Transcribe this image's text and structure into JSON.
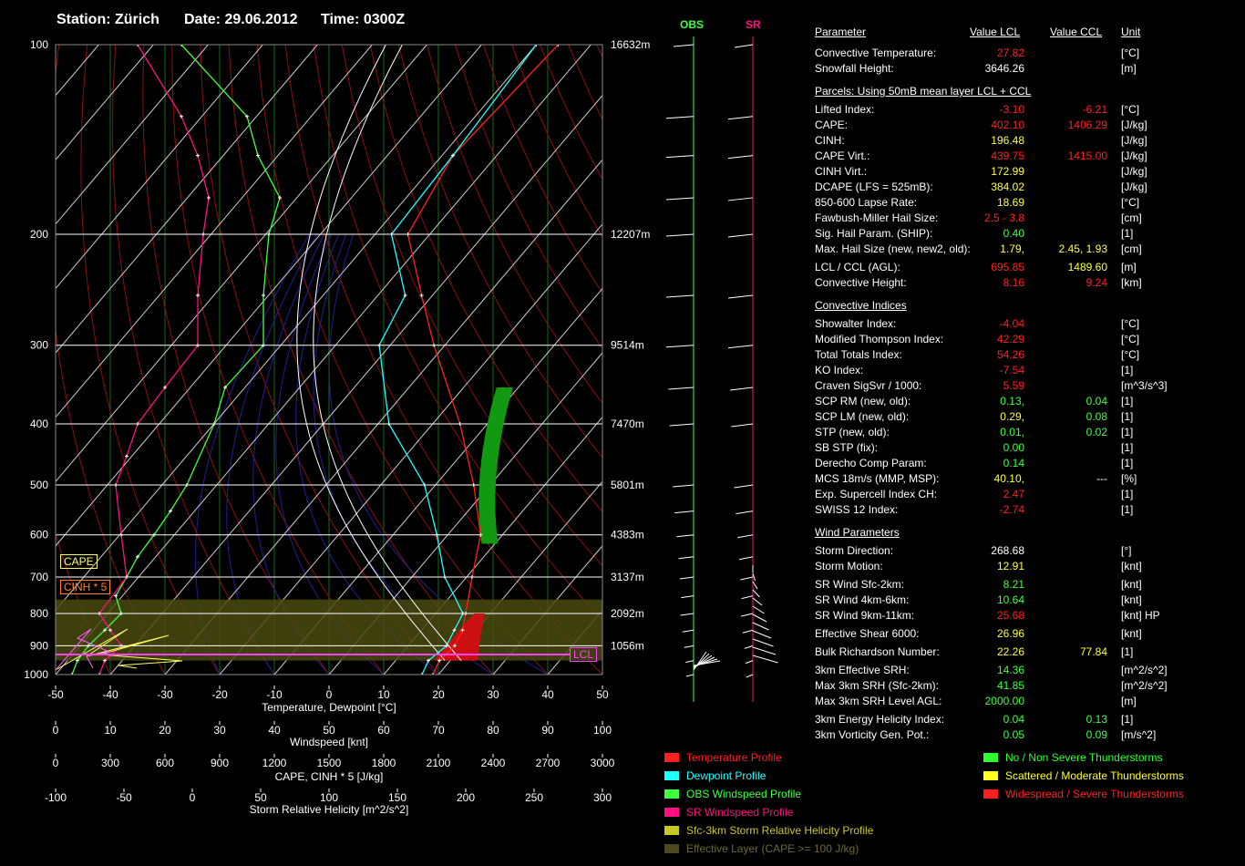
{
  "header": {
    "station": "Station: Zürich",
    "date": "Date: 29.06.2012",
    "time": "Time: 0300Z"
  },
  "hodo_labels": {
    "obs": "OBS",
    "sr": "SR"
  },
  "axes": {
    "temp_label": "Temperature, Dewpoint [°C]",
    "temp_ticks": [
      "-50",
      "-40",
      "-30",
      "-20",
      "-10",
      "0",
      "10",
      "20",
      "30",
      "40",
      "50"
    ],
    "wind_label": "Windspeed [knt]",
    "wind_ticks": [
      "0",
      "10",
      "20",
      "30",
      "40",
      "50",
      "60",
      "70",
      "80",
      "90",
      "100"
    ],
    "cape_label": "CAPE, CINH * 5 [J/kg]",
    "cape_ticks": [
      "0",
      "300",
      "600",
      "900",
      "1200",
      "1500",
      "1800",
      "2100",
      "2400",
      "2700",
      "3000"
    ],
    "srh_label": "Storm Relative Helicity [m^2/s^2]",
    "srh_ticks": [
      "-100",
      "-50",
      "0",
      "50",
      "100",
      "150",
      "200",
      "250",
      "300"
    ],
    "pressure_ticks": [
      "100",
      "200",
      "300",
      "400",
      "500",
      "600",
      "700",
      "800",
      "900",
      "1000"
    ],
    "height_labels": [
      "16632m",
      "12207m",
      "9514m",
      "7470m",
      "5801m",
      "4383m",
      "3137m",
      "2092m",
      "1056m"
    ]
  },
  "tags": {
    "cape": "CAPE",
    "cinh": "CINH * 5",
    "lcl": "LCL"
  },
  "table": {
    "col_param": "Parameter",
    "col_lcl": "Value LCL",
    "col_ccl": "Value CCL",
    "col_unit": "Unit",
    "sec_parcels": "Parcels: Using 50mB mean layer LCL + CCL",
    "sec_convective": "Convective Indices",
    "sec_wind": "Wind Parameters",
    "rows": [
      {
        "name": "Convective Temperature:",
        "v1": "27.82",
        "c1": "#ff2020",
        "v2": "",
        "c2": "#fff",
        "unit": "[°C]"
      },
      {
        "name": "Snowfall Height:",
        "v1": "3646.26",
        "c1": "#ffffff",
        "v2": "",
        "c2": "#fff",
        "unit": "[m]"
      },
      {
        "name": "Lifted Index:",
        "v1": "-3.10",
        "c1": "#ff2020",
        "v2": "-6.21",
        "c2": "#ff2020",
        "unit": "[°C]"
      },
      {
        "name": "CAPE:",
        "v1": "402.10",
        "c1": "#ff2020",
        "v2": "1406.29",
        "c2": "#ff2020",
        "unit": "[J/kg]"
      },
      {
        "name": "CINH:",
        "v1": "196.48",
        "c1": "#ffff40",
        "v2": "",
        "c2": "#fff",
        "unit": "[J/kg]"
      },
      {
        "name": "CAPE Virt.:",
        "v1": "439.75",
        "c1": "#ff2020",
        "v2": "1415.00",
        "c2": "#ff2020",
        "unit": "[J/kg]"
      },
      {
        "name": "CINH Virt.:",
        "v1": "172.99",
        "c1": "#ffff40",
        "v2": "",
        "c2": "#fff",
        "unit": "[J/kg]"
      },
      {
        "name": "DCAPE (LFS = 525mB):",
        "v1": "384.02",
        "c1": "#ffff40",
        "v2": "",
        "c2": "#fff",
        "unit": "[J/kg]"
      },
      {
        "name": "850-600 Lapse Rate:",
        "v1": "18.69",
        "c1": "#ffff40",
        "v2": "",
        "c2": "#fff",
        "unit": "[°C]"
      },
      {
        "name": "Fawbush-Miller Hail Size:",
        "v1": "2.5 - 3.8",
        "c1": "#ff2020",
        "v2": "",
        "c2": "#fff",
        "unit": "[cm]"
      },
      {
        "name": "Sig. Hail Param. (SHIP):",
        "v1": "0.40",
        "c1": "#40ff40",
        "v2": "",
        "c2": "#fff",
        "unit": "[1]"
      },
      {
        "name": "Max. Hail Size (new, new2, old):",
        "v1": "1.79,",
        "c1": "#ffff40",
        "v2": "2.45,  1.93",
        "c2": "#ffff40",
        "unit": "[cm]"
      },
      {
        "name": "LCL / CCL (AGL):",
        "v1": "695.85",
        "c1": "#ff2020",
        "v2": "1489.60",
        "c2": "#ffff40",
        "unit": "[m]"
      },
      {
        "name": "Convective Height:",
        "v1": "8.16",
        "c1": "#ff2020",
        "v2": "9.24",
        "c2": "#ff2020",
        "unit": "[km]"
      },
      {
        "name": "Showalter Index:",
        "v1": "-4.04",
        "c1": "#ff2020",
        "v2": "",
        "c2": "#fff",
        "unit": "[°C]"
      },
      {
        "name": "Modified Thompson Index:",
        "v1": "42.29",
        "c1": "#ff2020",
        "v2": "",
        "c2": "#fff",
        "unit": "[°C]"
      },
      {
        "name": "Total Totals Index:",
        "v1": "54.26",
        "c1": "#ff2020",
        "v2": "",
        "c2": "#fff",
        "unit": "[°C]"
      },
      {
        "name": "KO Index:",
        "v1": "-7.54",
        "c1": "#ff2020",
        "v2": "",
        "c2": "#fff",
        "unit": "[1]"
      },
      {
        "name": "Craven SigSvr / 1000:",
        "v1": "5.59",
        "c1": "#ff2020",
        "v2": "",
        "c2": "#fff",
        "unit": "[m^3/s^3]"
      },
      {
        "name": "SCP RM (new, old):",
        "v1": "0.13,",
        "c1": "#40ff40",
        "v2": "0.04",
        "c2": "#40ff40",
        "unit": "[1]"
      },
      {
        "name": "SCP LM (new, old):",
        "v1": "0.29,",
        "c1": "#ffff40",
        "v2": "0.08",
        "c2": "#40ff40",
        "unit": "[1]"
      },
      {
        "name": "STP (new, old):",
        "v1": "0.01,",
        "c1": "#40ff40",
        "v2": "0.02",
        "c2": "#40ff40",
        "unit": "[1]"
      },
      {
        "name": "SB STP (fix):",
        "v1": "0.00",
        "c1": "#40ff40",
        "v2": "",
        "c2": "#fff",
        "unit": "[1]"
      },
      {
        "name": "Derecho Comp Param:",
        "v1": "0.14",
        "c1": "#40ff40",
        "v2": "",
        "c2": "#fff",
        "unit": "[1]"
      },
      {
        "name": "MCS 18m/s (MMP, MSP):",
        "v1": "40.10,",
        "c1": "#ffff40",
        "v2": "---",
        "c2": "#ffffff",
        "unit": "[%]"
      },
      {
        "name": "Exp. Supercell Index CH:",
        "v1": "2.47",
        "c1": "#ff2020",
        "v2": "",
        "c2": "#fff",
        "unit": "[1]"
      },
      {
        "name": "SWISS 12 Index:",
        "v1": "-2.74",
        "c1": "#ff2020",
        "v2": "",
        "c2": "#fff",
        "unit": "[1]"
      },
      {
        "name": "Storm Direction:",
        "v1": "268.68",
        "c1": "#ffffff",
        "v2": "",
        "c2": "#fff",
        "unit": "[°]"
      },
      {
        "name": "Storm Motion:",
        "v1": "12.91",
        "c1": "#ffff40",
        "v2": "",
        "c2": "#fff",
        "unit": "[knt]"
      },
      {
        "name": "SR Wind Sfc-2km:",
        "v1": "8.21",
        "c1": "#40ff40",
        "v2": "",
        "c2": "#fff",
        "unit": "[knt]"
      },
      {
        "name": "SR Wind 4km-6km:",
        "v1": "10.64",
        "c1": "#40ff40",
        "v2": "",
        "c2": "#fff",
        "unit": "[knt]"
      },
      {
        "name": "SR Wind 9km-11km:",
        "v1": "25.68",
        "c1": "#ff2020",
        "v2": "",
        "c2": "#fff",
        "unit": "[knt] HP"
      },
      {
        "name": "Effective Shear 6000:",
        "v1": "26.96",
        "c1": "#ffff40",
        "v2": "",
        "c2": "#fff",
        "unit": "[knt]"
      },
      {
        "name": "Bulk Richardson Number:",
        "v1": "22.26",
        "c1": "#ffff40",
        "v2": "77.84",
        "c2": "#ffff40",
        "unit": "[1]"
      },
      {
        "name": "3km Effective SRH:",
        "v1": "14.36",
        "c1": "#40ff40",
        "v2": "",
        "c2": "#fff",
        "unit": "[m^2/s^2]"
      },
      {
        "name": "Max 3km SRH (Sfc-2km):",
        "v1": "41.85",
        "c1": "#40ff40",
        "v2": "",
        "c2": "#fff",
        "unit": "[m^2/s^2]"
      },
      {
        "name": "Max 3km SRH Level AGL:",
        "v1": "2000.00",
        "c1": "#40ff40",
        "v2": "",
        "c2": "#fff",
        "unit": "[m]"
      },
      {
        "name": "3km Energy Helicity Index:",
        "v1": "0.04",
        "c1": "#40ff40",
        "v2": "0.13",
        "c2": "#40ff40",
        "unit": "[1]"
      },
      {
        "name": "3km Vorticity Gen. Pot.:",
        "v1": "0.05",
        "c1": "#40ff40",
        "v2": "0.09",
        "c2": "#40ff40",
        "unit": "[m/s^2]"
      }
    ]
  },
  "legend": [
    {
      "label": "Temperature Profile",
      "color": "#ff2020"
    },
    {
      "label": "Dewpoint Profile",
      "color": "#20ffff"
    },
    {
      "label": "OBS Windspeed Profile",
      "color": "#40ff40"
    },
    {
      "label": "SR Windspeed Profile",
      "color": "#ff1080"
    },
    {
      "label": "Sfc-3km Storm Relative Helicity Profile",
      "color": "#c8c820"
    },
    {
      "label": "Effective Layer (CAPE >= 100 J/kg)",
      "color": "#4a4a1a"
    },
    {
      "label": "No / Non Severe Thunderstorms",
      "color": "#30ff30"
    },
    {
      "label": "Scattered / Moderate Thunderstorms",
      "color": "#ffff20"
    },
    {
      "label": "Widespread / Severe Thunderstorms",
      "color": "#ff2020"
    }
  ],
  "chart_data": {
    "type": "line",
    "title": "Station: Zürich  Date: 29.06.2012  Time: 0300Z",
    "xlabel": "Temperature, Dewpoint [°C]",
    "ylabel": "",
    "xlim": [
      -50,
      50
    ],
    "ylim_pressure": [
      1000,
      100
    ],
    "log_pressure": true,
    "series": [
      {
        "name": "Temperature Profile",
        "color": "#ff2020",
        "points": [
          [
            1000,
            19
          ],
          [
            950,
            18
          ],
          [
            900,
            18.5
          ],
          [
            850,
            17.5
          ],
          [
            800,
            15.5
          ],
          [
            700,
            11
          ],
          [
            600,
            6
          ],
          [
            500,
            -3
          ],
          [
            400,
            -15
          ],
          [
            300,
            -32
          ],
          [
            250,
            -42
          ],
          [
            200,
            -54
          ],
          [
            150,
            -58
          ],
          [
            100,
            -56
          ]
        ]
      },
      {
        "name": "Dewpoint Profile",
        "color": "#20ffff",
        "points": [
          [
            1000,
            17
          ],
          [
            950,
            16
          ],
          [
            900,
            17
          ],
          [
            850,
            16
          ],
          [
            800,
            15
          ],
          [
            700,
            6
          ],
          [
            600,
            -2
          ],
          [
            500,
            -12
          ],
          [
            400,
            -28
          ],
          [
            300,
            -42
          ],
          [
            250,
            -45
          ],
          [
            200,
            -57
          ],
          [
            150,
            -58
          ],
          [
            100,
            -60
          ]
        ]
      },
      {
        "name": "OBS Windspeed Profile",
        "color": "#40ff40",
        "points": [
          [
            1000,
            3
          ],
          [
            950,
            4
          ],
          [
            900,
            6
          ],
          [
            850,
            9
          ],
          [
            800,
            12
          ],
          [
            750,
            11
          ],
          [
            700,
            13
          ],
          [
            650,
            15
          ],
          [
            600,
            18
          ],
          [
            550,
            21
          ],
          [
            500,
            24
          ],
          [
            400,
            29
          ],
          [
            350,
            31
          ],
          [
            300,
            38
          ],
          [
            250,
            38
          ],
          [
            200,
            39
          ],
          [
            175,
            41
          ],
          [
            150,
            37
          ],
          [
            130,
            35
          ],
          [
            100,
            23
          ]
        ]
      },
      {
        "name": "SR Windspeed Profile",
        "color": "#ff1080",
        "points": [
          [
            1000,
            8
          ],
          [
            950,
            9
          ],
          [
            900,
            12
          ],
          [
            850,
            10
          ],
          [
            800,
            8
          ],
          [
            700,
            13
          ],
          [
            600,
            12
          ],
          [
            500,
            11
          ],
          [
            450,
            13
          ],
          [
            400,
            15
          ],
          [
            350,
            20
          ],
          [
            300,
            26
          ],
          [
            250,
            26
          ],
          [
            200,
            27
          ],
          [
            175,
            28
          ],
          [
            150,
            26
          ],
          [
            130,
            23
          ],
          [
            100,
            15
          ]
        ]
      }
    ],
    "wind_speeds_knt": [
      3,
      4,
      6,
      9,
      12,
      11,
      13,
      15,
      18,
      21,
      24,
      29,
      31,
      38,
      38,
      39,
      41,
      37,
      35,
      23
    ]
  }
}
